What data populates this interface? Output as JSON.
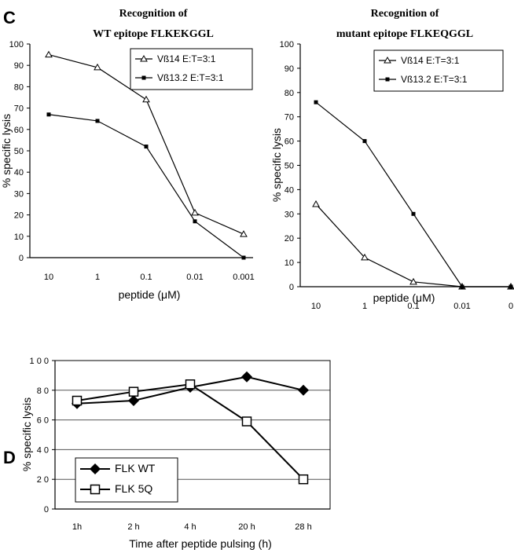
{
  "panels": {
    "c_letter": "C",
    "d_letter": "D"
  },
  "chart_data": [
    {
      "type": "line",
      "title": "Recognition of",
      "subtitle": "WT epitope FLKEKGGL",
      "xlabel": "peptide (μM)",
      "ylabel": "% specific lysis",
      "categories": [
        "10",
        "1",
        "0.1",
        "0.01",
        "0.001"
      ],
      "ylim": [
        0,
        100
      ],
      "yticks": [
        "0",
        "10",
        "20",
        "30",
        "40",
        "50",
        "60",
        "70",
        "80",
        "90",
        "100"
      ],
      "grid": false,
      "legend_position": "top-right",
      "series": [
        {
          "name": "Vß14  E:T=3:1",
          "marker": "triangle",
          "values": [
            95,
            89,
            74,
            21,
            11
          ]
        },
        {
          "name": "Vß13.2  E:T=3:1",
          "marker": "asterisk",
          "values": [
            67,
            64,
            52,
            17,
            0
          ]
        }
      ]
    },
    {
      "type": "line",
      "title": "Recognition of",
      "subtitle": "mutant epitope FLKEQGGL",
      "xlabel": "peptide (μM)",
      "ylabel": "% specific lysis",
      "categories": [
        "10",
        "1",
        "0.1",
        "0.01",
        "0"
      ],
      "ylim": [
        0,
        100
      ],
      "yticks": [
        "0",
        "10",
        "20",
        "30",
        "40",
        "50",
        "60",
        "70",
        "80",
        "90",
        "100"
      ],
      "grid": false,
      "legend_position": "top-right",
      "series": [
        {
          "name": "Vß14  E:T=3:1",
          "marker": "triangle",
          "values": [
            34,
            12,
            2,
            0,
            0
          ]
        },
        {
          "name": "Vß13.2  E:T=3:1",
          "marker": "asterisk",
          "values": [
            76,
            60,
            30,
            0,
            0
          ]
        }
      ]
    },
    {
      "type": "line",
      "title": "",
      "xlabel": "Time after peptide pulsing (h)",
      "ylabel": "% specific lysis",
      "categories": [
        "1h",
        "2 h",
        "4 h",
        "20 h",
        "28 h"
      ],
      "ylim": [
        0,
        100
      ],
      "yticks": [
        "0",
        "2 0",
        "4 0",
        "6 0",
        "8 0",
        "1 0 0"
      ],
      "grid": true,
      "legend_position": "bottom-left",
      "series": [
        {
          "name": "FLK WT",
          "marker": "filled-diamond",
          "values": [
            71,
            73,
            82,
            89,
            80
          ]
        },
        {
          "name": "FLK 5Q",
          "marker": "open-square",
          "values": [
            73,
            79,
            84,
            59,
            20
          ]
        }
      ]
    }
  ]
}
